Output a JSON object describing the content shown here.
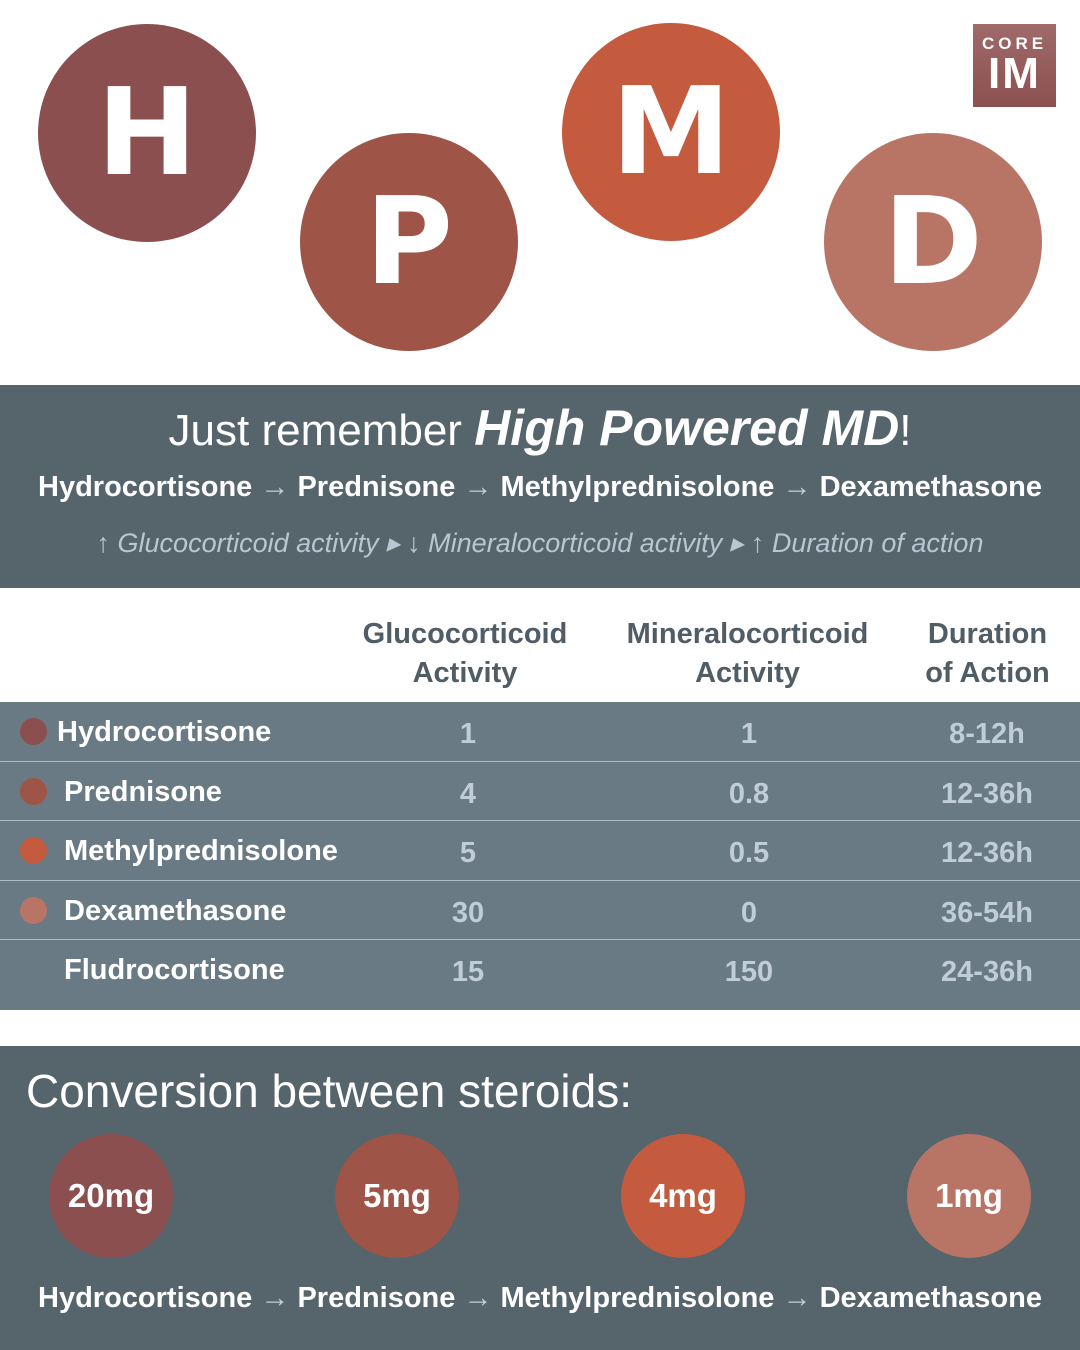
{
  "colors": {
    "hydrocortisone": "#8b4f4f",
    "prednisone": "#9e5446",
    "methylprednisolone": "#c45a3e",
    "dexamethasone": "#b87565",
    "panel": "#56646c",
    "table": "#6a7a84"
  },
  "hero": {
    "letters": [
      "H",
      "P",
      "M",
      "D"
    ]
  },
  "logo": {
    "top": "CORE",
    "bottom": "IM"
  },
  "banner": {
    "title_pre": "Just remember ",
    "title_bold": "High Powered MD",
    "title_post": "!",
    "flow": [
      "Hydrocortisone",
      "Prednisone",
      "Methylprednisolone",
      "Dexamethasone"
    ],
    "arrow": "→",
    "subtitle": "↑ Glucocorticoid activity ▸ ↓ Mineralocorticoid activity ▸ ↑ Duration of action"
  },
  "table": {
    "headers": [
      [
        "Glucocorticoid",
        "Activity"
      ],
      [
        "Mineralocorticoid",
        "Activity"
      ],
      [
        "Duration",
        "of Action"
      ]
    ],
    "rows": [
      {
        "name": "Hydrocortisone",
        "gluco": "1",
        "mineralo": "1",
        "duration": "8-12h"
      },
      {
        "name": "Prednisone",
        "gluco": "4",
        "mineralo": "0.8",
        "duration": "12-36h"
      },
      {
        "name": "Methylprednisolone",
        "gluco": "5",
        "mineralo": "0.5",
        "duration": "12-36h"
      },
      {
        "name": "Dexamethasone",
        "gluco": "30",
        "mineralo": "0",
        "duration": "36-54h"
      },
      {
        "name": "Fludrocortisone",
        "gluco": "15",
        "mineralo": "150",
        "duration": "24-36h"
      }
    ]
  },
  "conversion": {
    "title": "Conversion between steroids:",
    "doses": [
      "20mg",
      "5mg",
      "4mg",
      "1mg"
    ]
  }
}
